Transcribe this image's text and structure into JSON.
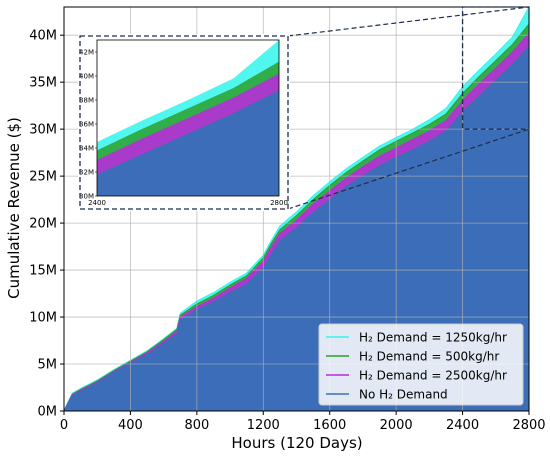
{
  "chart_data": {
    "type": "area",
    "title": "",
    "xlabel": "Hours (120 Days)",
    "ylabel": "Cumulative Revenue ($)",
    "xlim": [
      0,
      2800
    ],
    "ylim": [
      0,
      43000000
    ],
    "x_ticks": [
      0,
      400,
      800,
      1200,
      1600,
      2000,
      2400,
      2800
    ],
    "x_tick_labels": [
      "0",
      "400",
      "800",
      "1200",
      "1600",
      "2000",
      "2400",
      "2800"
    ],
    "y_ticks": [
      0,
      5000000,
      10000000,
      15000000,
      20000000,
      25000000,
      30000000,
      35000000,
      40000000
    ],
    "y_tick_labels": [
      "0M",
      "5M",
      "10M",
      "15M",
      "20M",
      "25M",
      "30M",
      "35M",
      "40M"
    ],
    "grid": true,
    "legend_position": "lower-right",
    "x": [
      0,
      20,
      50,
      100,
      200,
      300,
      400,
      500,
      600,
      680,
      700,
      800,
      900,
      1000,
      1100,
      1200,
      1250,
      1300,
      1400,
      1500,
      1600,
      1700,
      1800,
      1900,
      2000,
      2100,
      2200,
      2300,
      2400,
      2500,
      2600,
      2700,
      2800
    ],
    "series": [
      {
        "name": "H₂ Demand = 1250kg/hr",
        "color": "#33f5ec",
        "values": [
          0,
          800000,
          1900000,
          2400000,
          3300000,
          4400000,
          5400000,
          6400000,
          7700000,
          8800000,
          10400000,
          11700000,
          12600000,
          13700000,
          14700000,
          16600000,
          18200000,
          19700000,
          21200000,
          22900000,
          24400000,
          25800000,
          27000000,
          28200000,
          29100000,
          30000000,
          31000000,
          32200000,
          34500000,
          36300000,
          38000000,
          39800000,
          43000000
        ]
      },
      {
        "name": "H₂ Demand = 500kg/hr",
        "color": "#2ca02c",
        "values": [
          0,
          750000,
          1800000,
          2300000,
          3200000,
          4300000,
          5300000,
          6300000,
          7600000,
          8700000,
          10200000,
          11400000,
          12300000,
          13400000,
          14400000,
          16300000,
          17900000,
          19300000,
          20800000,
          22500000,
          24000000,
          25400000,
          26600000,
          27800000,
          28700000,
          29600000,
          30500000,
          31600000,
          33800000,
          35600000,
          37300000,
          39000000,
          41200000
        ]
      },
      {
        "name": "H₂ Demand = 2500kg/hr",
        "color": "#c026e0",
        "values": [
          0,
          700000,
          1700000,
          2200000,
          3100000,
          4200000,
          5200000,
          6200000,
          7400000,
          8500000,
          10000000,
          11100000,
          12000000,
          13100000,
          14100000,
          15900000,
          17500000,
          18900000,
          20300000,
          22000000,
          23400000,
          24800000,
          26000000,
          27100000,
          28000000,
          28900000,
          29800000,
          30900000,
          33000000,
          34800000,
          36500000,
          38200000,
          40200000
        ]
      },
      {
        "name": "No H₂ Demand",
        "color": "#3c6db8",
        "values": [
          0,
          650000,
          1600000,
          2100000,
          3000000,
          4100000,
          5100000,
          6000000,
          7200000,
          8200000,
          9700000,
          10800000,
          11600000,
          12600000,
          13500000,
          15200000,
          16700000,
          18100000,
          19500000,
          21100000,
          22500000,
          23900000,
          25000000,
          26100000,
          27000000,
          27800000,
          28700000,
          29800000,
          31800000,
          33500000,
          35200000,
          36900000,
          38800000
        ]
      }
    ],
    "inset": {
      "xlim": [
        2400,
        2800
      ],
      "ylim": [
        30000000,
        43000000
      ],
      "x_tick_labels": [
        "2400",
        "2800"
      ],
      "y_tick_labels": [
        "30M",
        "32M",
        "34M",
        "36M",
        "38M",
        "40M",
        "42M"
      ]
    }
  }
}
